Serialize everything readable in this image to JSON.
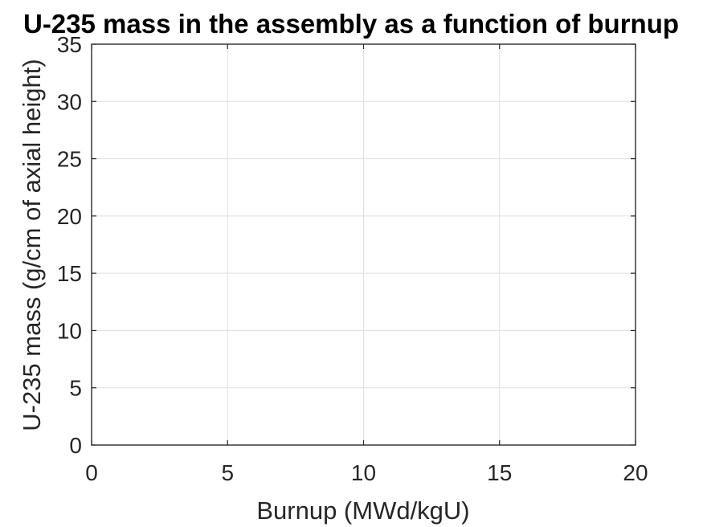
{
  "chart_data": {
    "type": "line",
    "title": "U-235 mass in the assembly as a function of burnup",
    "xlabel": "Burnup (MWd/kgU)",
    "ylabel": "U-235 mass (g/cm of axial height)",
    "xlim": [
      0,
      20
    ],
    "ylim": [
      0,
      35
    ],
    "xticks": [
      0,
      5,
      10,
      15,
      20
    ],
    "yticks": [
      0,
      5,
      10,
      15,
      20,
      25,
      30,
      35
    ],
    "grid": true,
    "series": []
  }
}
